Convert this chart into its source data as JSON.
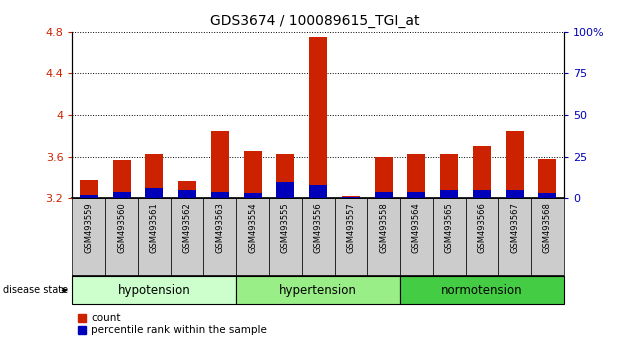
{
  "title": "GDS3674 / 100089615_TGI_at",
  "samples": [
    "GSM493559",
    "GSM493560",
    "GSM493561",
    "GSM493562",
    "GSM493563",
    "GSM493554",
    "GSM493555",
    "GSM493556",
    "GSM493557",
    "GSM493558",
    "GSM493564",
    "GSM493565",
    "GSM493566",
    "GSM493567",
    "GSM493568"
  ],
  "count_values": [
    3.38,
    3.57,
    3.63,
    3.37,
    3.85,
    3.65,
    3.63,
    4.75,
    3.22,
    3.6,
    3.63,
    3.63,
    3.7,
    3.85,
    3.58
  ],
  "percentile_values": [
    2,
    4,
    6,
    5,
    4,
    3,
    10,
    8,
    1,
    4,
    4,
    5,
    5,
    5,
    3
  ],
  "groups": [
    {
      "label": "hypotension",
      "indices": [
        0,
        1,
        2,
        3,
        4
      ],
      "color": "#ccffcc"
    },
    {
      "label": "hypertension",
      "indices": [
        5,
        6,
        7,
        8,
        9
      ],
      "color": "#99ee88"
    },
    {
      "label": "normotension",
      "indices": [
        10,
        11,
        12,
        13,
        14
      ],
      "color": "#44cc44"
    }
  ],
  "ylim_left": [
    3.2,
    4.8
  ],
  "ylim_right": [
    0,
    100
  ],
  "yticks_left": [
    3.2,
    3.6,
    4.0,
    4.4,
    4.8
  ],
  "yticks_right": [
    0,
    25,
    50,
    75,
    100
  ],
  "bar_color_count": "#cc2200",
  "bar_color_pct": "#0000bb",
  "baseline": 3.2,
  "background_color": "#ffffff",
  "tick_label_color_left": "#cc2200",
  "tick_label_color_right": "#0000bb",
  "tick_box_color": "#cccccc"
}
